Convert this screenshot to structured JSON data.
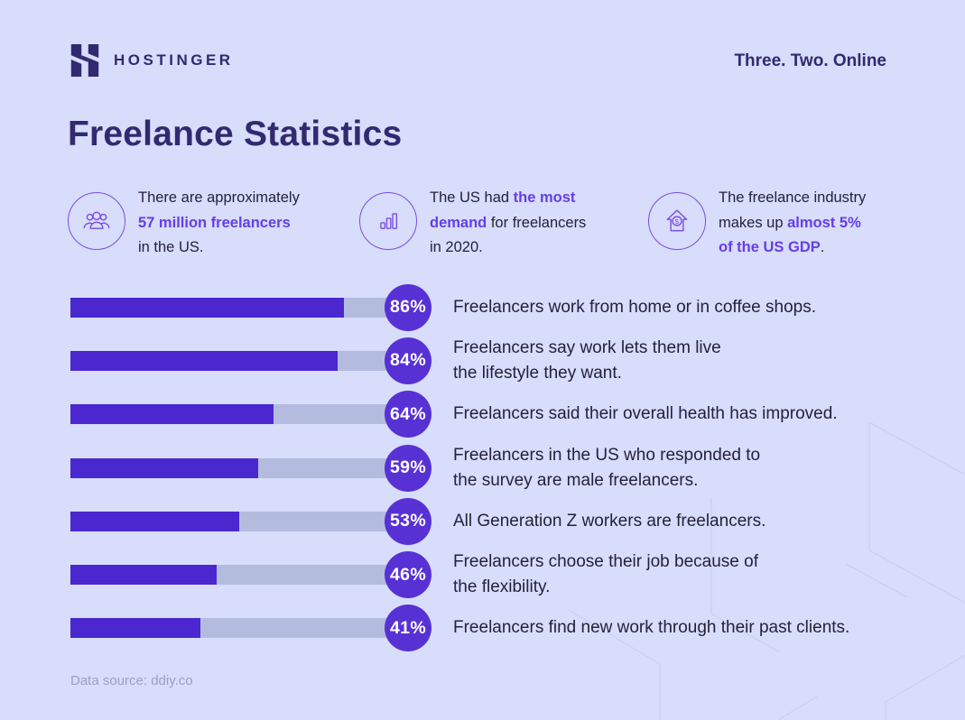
{
  "header": {
    "brand": "HOSTINGER",
    "tagline": "Three. Two. Online"
  },
  "title": "Freelance Statistics",
  "stats": [
    {
      "icon": "people-group-icon",
      "lines": [
        [
          {
            "text": "There are approximately",
            "accent": false
          }
        ],
        [
          {
            "text": "57 million freelancers",
            "accent": true
          }
        ],
        [
          {
            "text": "in the US.",
            "accent": false
          }
        ]
      ]
    },
    {
      "icon": "bar-chart-icon",
      "lines": [
        [
          {
            "text": "The US had ",
            "accent": false
          },
          {
            "text": "the most",
            "accent": true
          }
        ],
        [
          {
            "text": "demand",
            "accent": true
          },
          {
            "text": " for freelancers",
            "accent": false
          }
        ],
        [
          {
            "text": "in 2020.",
            "accent": false
          }
        ]
      ]
    },
    {
      "icon": "dollar-house-icon",
      "lines": [
        [
          {
            "text": "The freelance industry",
            "accent": false
          }
        ],
        [
          {
            "text": "makes up ",
            "accent": false
          },
          {
            "text": "almost 5%",
            "accent": true
          }
        ],
        [
          {
            "text": "of the US GDP",
            "accent": true
          },
          {
            "text": ".",
            "accent": false
          }
        ]
      ]
    }
  ],
  "bars": [
    {
      "pct": 86,
      "label": "86%",
      "lines": [
        "Freelancers work from home or in coffee shops."
      ]
    },
    {
      "pct": 84,
      "label": "84%",
      "lines": [
        "Freelancers say work lets them live",
        "the lifestyle they want."
      ]
    },
    {
      "pct": 64,
      "label": "64%",
      "lines": [
        "Freelancers said their overall health has improved."
      ]
    },
    {
      "pct": 59,
      "label": "59%",
      "lines": [
        "Freelancers in the US who responded to",
        "the survey are male freelancers."
      ]
    },
    {
      "pct": 53,
      "label": "53%",
      "lines": [
        "All Generation Z workers are freelancers."
      ]
    },
    {
      "pct": 46,
      "label": "46%",
      "lines": [
        "Freelancers choose their job because of",
        "the flexibility."
      ]
    },
    {
      "pct": 41,
      "label": "41%",
      "lines": [
        "Freelancers find new work through their past clients."
      ]
    }
  ],
  "chart_data": {
    "type": "bar",
    "orientation": "horizontal",
    "title": "Freelance Statistics",
    "unit": "%",
    "xlim": [
      0,
      100
    ],
    "grid": false,
    "categories": [
      "Freelancers work from home or in coffee shops.",
      "Freelancers say work lets them live the lifestyle they want.",
      "Freelancers said their overall health has improved.",
      "Freelancers in the US who responded to the survey are male freelancers.",
      "All Generation Z workers are freelancers.",
      "Freelancers choose their job because of the flexibility.",
      "Freelancers find new work through their past clients."
    ],
    "values": [
      86,
      84,
      64,
      59,
      53,
      46,
      41
    ],
    "value_labels": [
      "86%",
      "84%",
      "64%",
      "59%",
      "53%",
      "46%",
      "41%"
    ]
  },
  "footer": {
    "source": "Data source: ddiy.co"
  },
  "colors": {
    "background": "#d7ddfa",
    "dark": "#312a70",
    "body": "#25213c",
    "accent": "#673de6",
    "bar": "#4b27cf",
    "badge": "#5831d5",
    "track": "#b3bcdf",
    "icon_stroke": "#7b4be4",
    "muted": "#9aa1c2"
  }
}
